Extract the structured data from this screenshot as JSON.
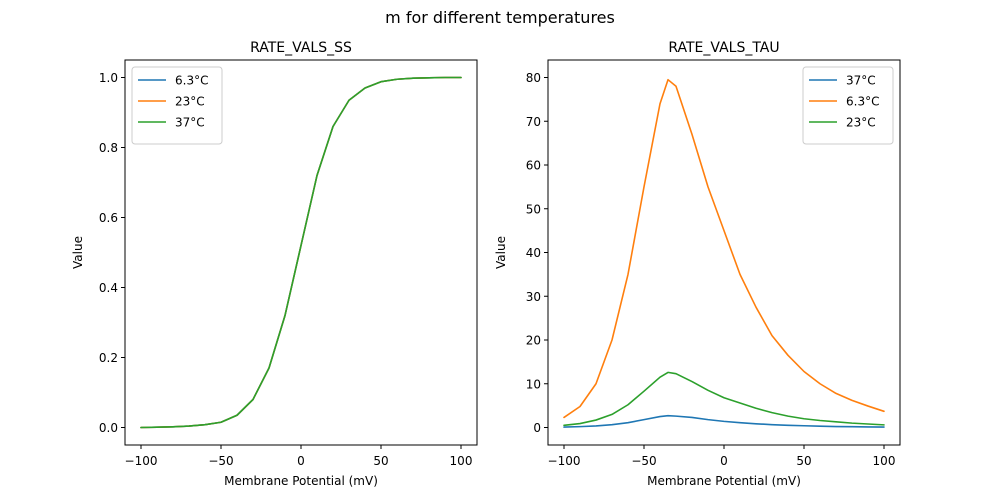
{
  "figure": {
    "suptitle": "m for different temperatures"
  },
  "chart_data": [
    {
      "type": "line",
      "title": "RATE_VALS_SS",
      "xlabel": "Membrane Potential (mV)",
      "ylabel": "Value",
      "xlim": [
        -110,
        110
      ],
      "ylim": [
        -0.05,
        1.05
      ],
      "xticks": [
        -100,
        -50,
        0,
        50,
        100
      ],
      "xtick_labels": [
        "−100",
        "−50",
        "0",
        "50",
        "100"
      ],
      "yticks": [
        0.0,
        0.2,
        0.4,
        0.6,
        0.8,
        1.0
      ],
      "ytick_labels": [
        "0.0",
        "0.2",
        "0.4",
        "0.6",
        "0.8",
        "1.0"
      ],
      "legend_position": "top-left",
      "grid": false,
      "x": [
        -100,
        -90,
        -80,
        -70,
        -60,
        -50,
        -40,
        -30,
        -20,
        -10,
        0,
        10,
        20,
        30,
        40,
        50,
        60,
        70,
        80,
        90,
        100
      ],
      "series": [
        {
          "name": "6.3°C",
          "color": "#1f77b4",
          "values": [
            0.0,
            0.001,
            0.002,
            0.004,
            0.008,
            0.015,
            0.035,
            0.08,
            0.17,
            0.32,
            0.52,
            0.72,
            0.86,
            0.935,
            0.97,
            0.988,
            0.995,
            0.998,
            0.999,
            1.0,
            1.0
          ]
        },
        {
          "name": "23°C",
          "color": "#ff7f0e",
          "values": [
            0.0,
            0.001,
            0.002,
            0.004,
            0.008,
            0.015,
            0.035,
            0.08,
            0.17,
            0.32,
            0.52,
            0.72,
            0.86,
            0.935,
            0.97,
            0.988,
            0.995,
            0.998,
            0.999,
            1.0,
            1.0
          ]
        },
        {
          "name": "37°C",
          "color": "#2ca02c",
          "values": [
            0.0,
            0.001,
            0.002,
            0.004,
            0.008,
            0.015,
            0.035,
            0.08,
            0.17,
            0.32,
            0.52,
            0.72,
            0.86,
            0.935,
            0.97,
            0.988,
            0.995,
            0.998,
            0.999,
            1.0,
            1.0
          ]
        }
      ]
    },
    {
      "type": "line",
      "title": "RATE_VALS_TAU",
      "xlabel": "Membrane Potential (mV)",
      "ylabel": "Value",
      "xlim": [
        -110,
        110
      ],
      "ylim": [
        -4,
        84
      ],
      "xticks": [
        -100,
        -50,
        0,
        50,
        100
      ],
      "xtick_labels": [
        "−100",
        "−50",
        "0",
        "50",
        "100"
      ],
      "yticks": [
        0,
        10,
        20,
        30,
        40,
        50,
        60,
        70,
        80
      ],
      "ytick_labels": [
        "0",
        "10",
        "20",
        "30",
        "40",
        "50",
        "60",
        "70",
        "80"
      ],
      "legend_position": "top-right",
      "grid": false,
      "x": [
        -100,
        -90,
        -80,
        -70,
        -60,
        -50,
        -40,
        -35,
        -30,
        -20,
        -10,
        0,
        10,
        20,
        30,
        40,
        50,
        60,
        70,
        80,
        90,
        100
      ],
      "series": [
        {
          "name": "37°C",
          "color": "#1f77b4",
          "values": [
            0.1,
            0.2,
            0.35,
            0.65,
            1.1,
            1.8,
            2.5,
            2.7,
            2.6,
            2.3,
            1.8,
            1.4,
            1.1,
            0.85,
            0.65,
            0.5,
            0.4,
            0.3,
            0.22,
            0.18,
            0.14,
            0.11
          ]
        },
        {
          "name": "6.3°C",
          "color": "#ff7f0e",
          "values": [
            2.3,
            4.8,
            10,
            20,
            35,
            55,
            74,
            79.5,
            78,
            67,
            55,
            45,
            35,
            27.5,
            21,
            16.5,
            12.8,
            10,
            7.8,
            6.2,
            4.9,
            3.7
          ]
        },
        {
          "name": "23°C",
          "color": "#2ca02c",
          "values": [
            0.5,
            0.9,
            1.7,
            3.0,
            5.2,
            8.3,
            11.5,
            12.6,
            12.3,
            10.5,
            8.5,
            6.8,
            5.6,
            4.4,
            3.4,
            2.6,
            2.0,
            1.6,
            1.3,
            1.0,
            0.8,
            0.6
          ]
        }
      ]
    }
  ]
}
